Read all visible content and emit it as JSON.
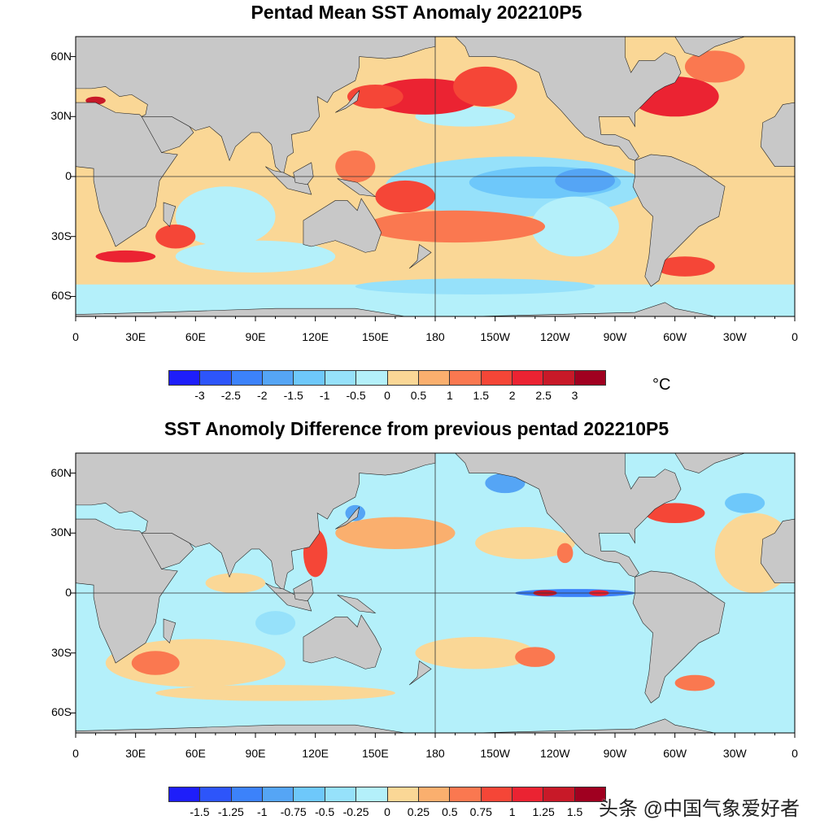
{
  "maps": [
    {
      "title": "Pentad Mean SST Anomaly 202210P5",
      "colorbar_labels": [
        "-3",
        "-2.5",
        "-2",
        "-1.5",
        "-1",
        "-0.5",
        "0",
        "0.5",
        "1",
        "1.5",
        "2",
        "2.5",
        "3"
      ],
      "unit": "°C"
    },
    {
      "title": "SST Anomoly Difference from previous pentad 202210P5",
      "colorbar_labels": [
        "-1.5",
        "-1.25",
        "-1",
        "-0.75",
        "-0.5",
        "-0.25",
        "0",
        "0.25",
        "0.5",
        "0.75",
        "1",
        "1.25",
        "1.5"
      ]
    }
  ],
  "lon_labels": [
    "0",
    "30E",
    "60E",
    "90E",
    "120E",
    "150E",
    "180",
    "150W",
    "120W",
    "90W",
    "60W",
    "30W",
    "0"
  ],
  "lat_labels": [
    "60N",
    "30N",
    "0",
    "30S",
    "60S"
  ],
  "colorbar_colors": [
    "#1e1efa",
    "#2d55fa",
    "#3c82fa",
    "#55a5f5",
    "#6ec8fa",
    "#96e1fa",
    "#b4f0fa",
    "#fad796",
    "#faaf6e",
    "#fa7850",
    "#f54637",
    "#eb2332",
    "#c81928",
    "#a00020"
  ],
  "land_color": "#c8c8c8",
  "watermark": "头条 @中国气象爱好者"
}
